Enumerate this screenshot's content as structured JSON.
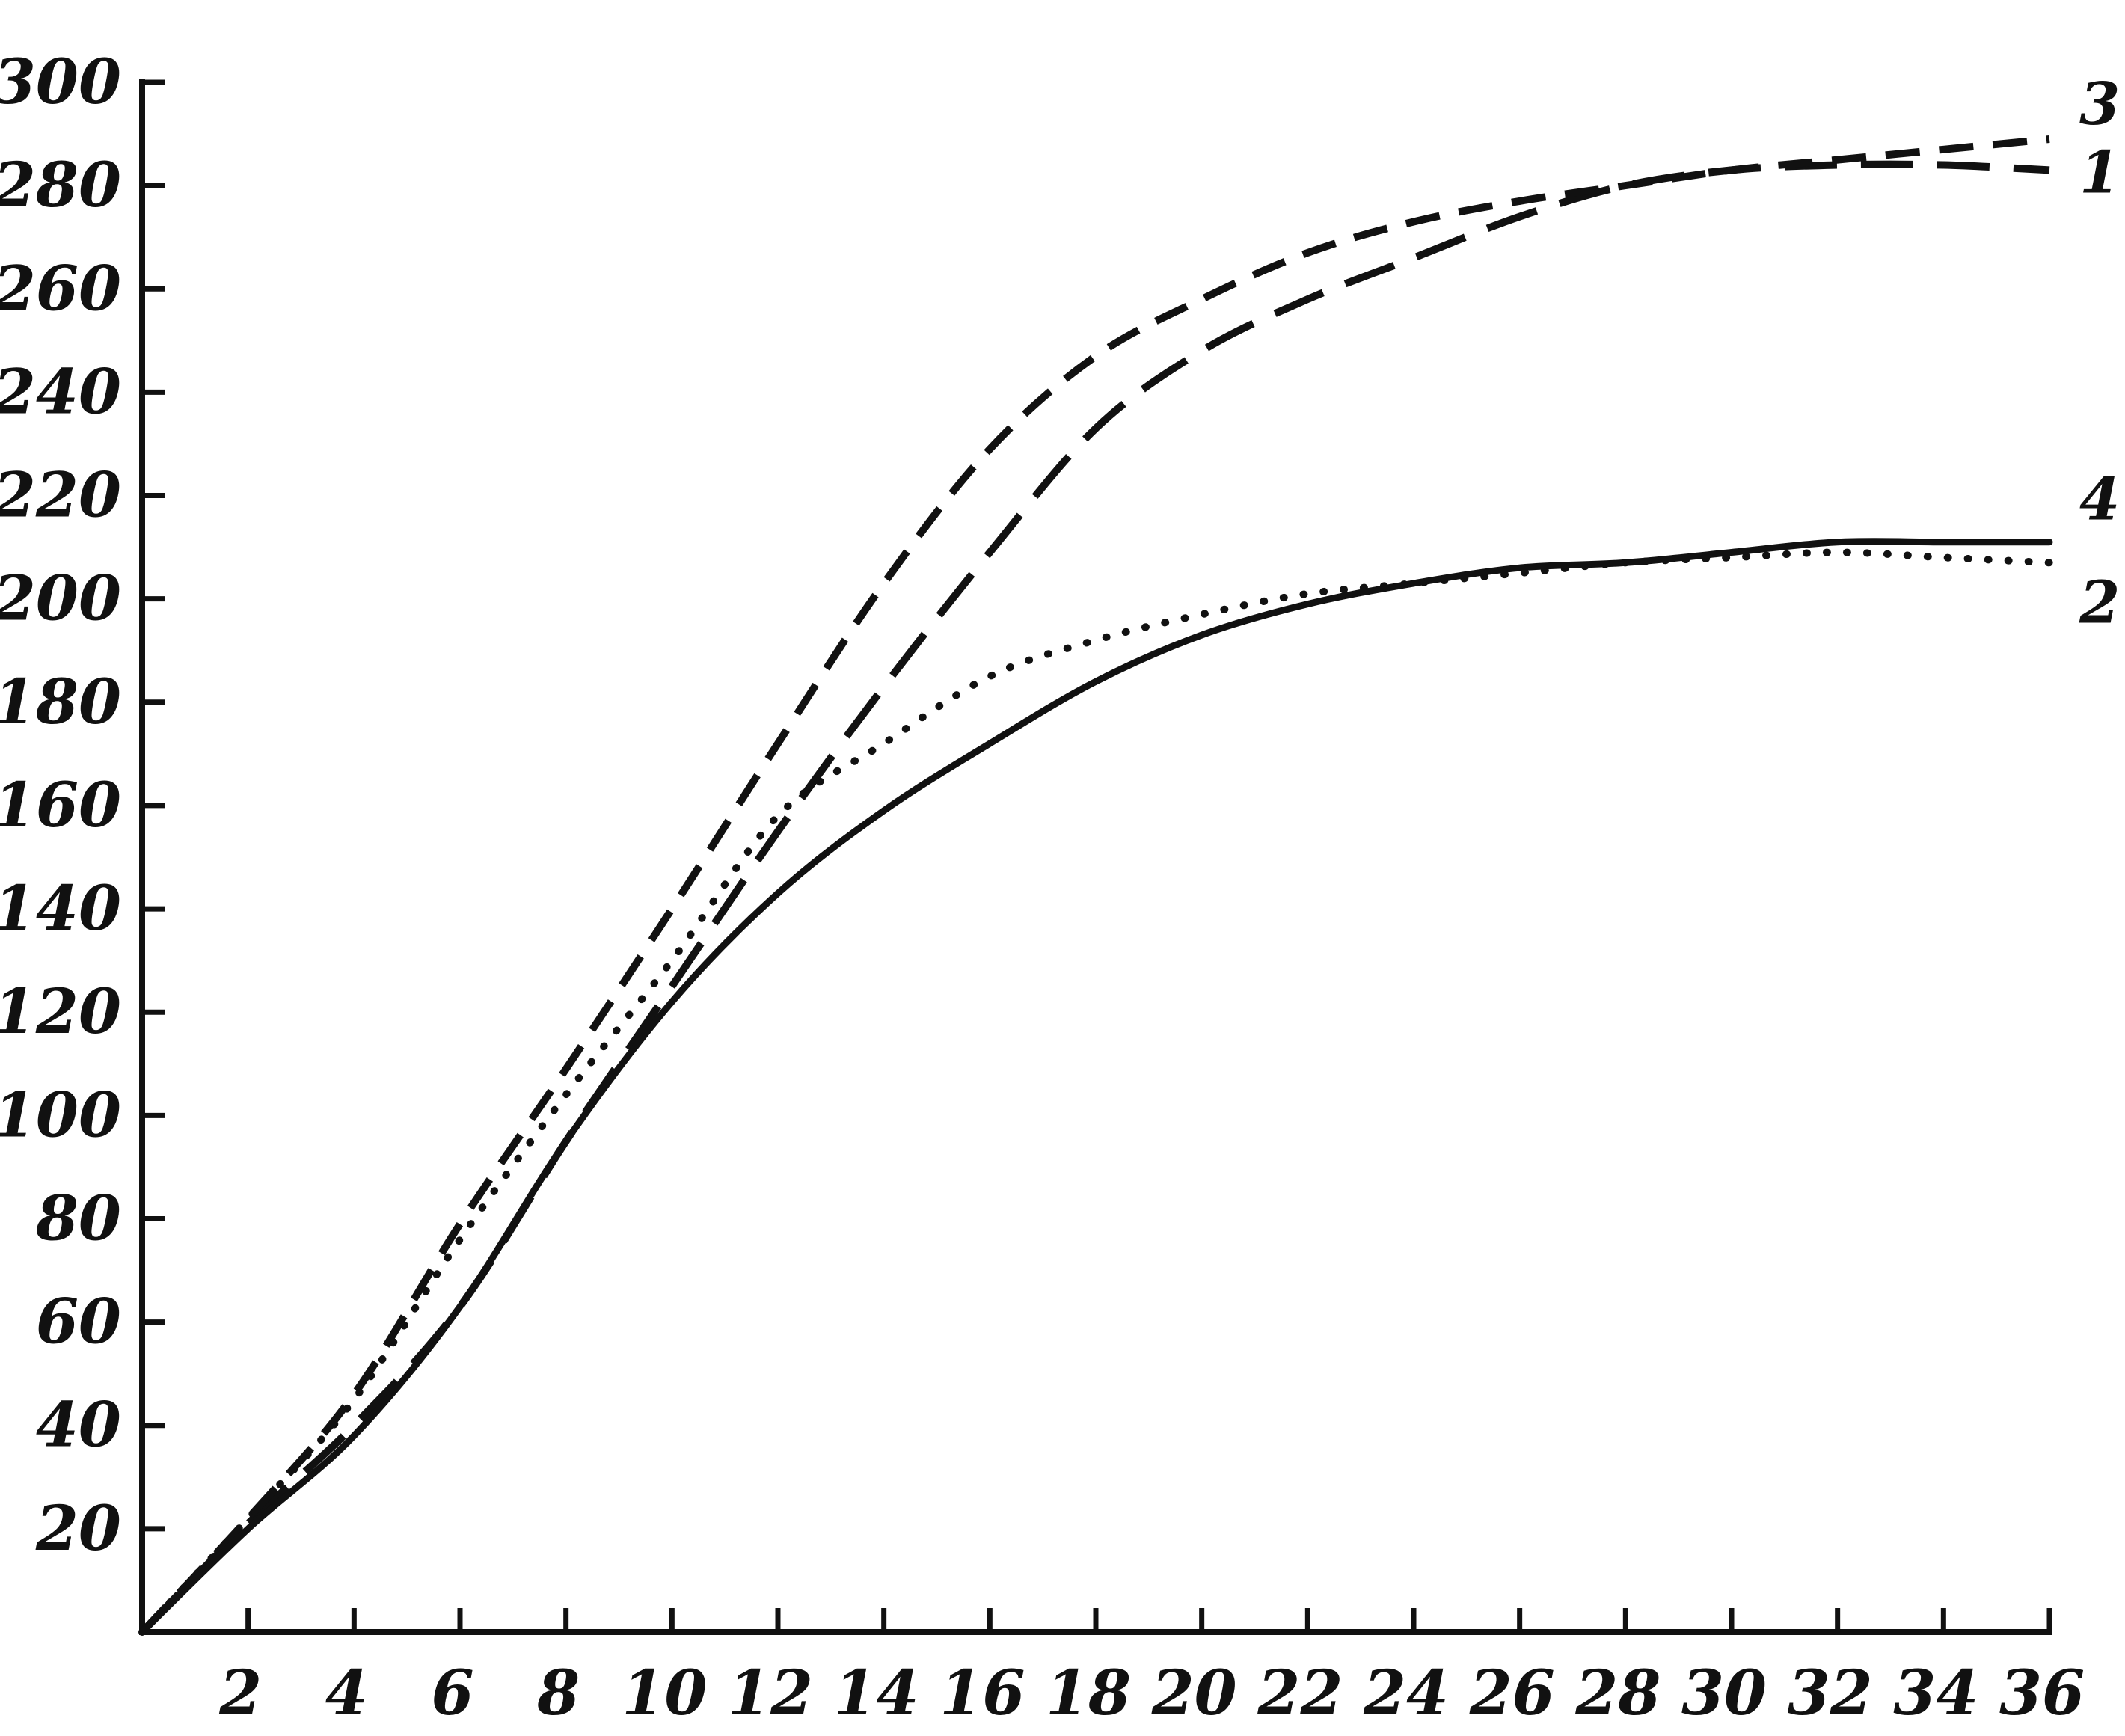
{
  "chart_data": {
    "type": "line",
    "title": "",
    "xlabel": "",
    "ylabel": "",
    "xlim": [
      0,
      36
    ],
    "ylim": [
      0,
      300
    ],
    "grid": false,
    "x_ticks": [
      2,
      4,
      6,
      8,
      10,
      12,
      14,
      16,
      18,
      20,
      22,
      24,
      26,
      28,
      30,
      32,
      34,
      36
    ],
    "y_ticks": [
      20,
      40,
      60,
      80,
      100,
      120,
      140,
      160,
      180,
      200,
      220,
      240,
      260,
      280,
      300
    ],
    "x_tick_labels": [
      "2",
      "4",
      "6",
      "8",
      "10",
      "12",
      "14",
      "16",
      "18",
      "20",
      "22",
      "24",
      "26",
      "28",
      "30",
      "32",
      "34",
      "36"
    ],
    "y_tick_labels": [
      "20",
      "40",
      "60",
      "80",
      "100",
      "120",
      "140",
      "160",
      "180",
      "200",
      "220",
      "240",
      "260",
      "280",
      "300"
    ],
    "series": [
      {
        "name": "1",
        "style": "long-dash",
        "color": "#111111",
        "x": [
          0,
          2,
          4,
          6,
          8,
          10,
          12,
          14,
          16,
          18,
          20,
          22,
          24,
          26,
          28,
          30,
          32,
          34,
          36
        ],
        "y": [
          0,
          21,
          40,
          63,
          95,
          125,
          155,
          183,
          209,
          233,
          248,
          258,
          266,
          274,
          280,
          283,
          284,
          284,
          283
        ]
      },
      {
        "name": "2",
        "style": "dotted",
        "color": "#111111",
        "x": [
          0,
          2,
          4,
          6,
          8,
          10,
          12,
          14,
          16,
          18,
          20,
          22,
          24,
          26,
          28,
          30,
          32,
          34,
          36
        ],
        "y": [
          0,
          22,
          45,
          76,
          104,
          130,
          158,
          172,
          185,
          192,
          197,
          201,
          203,
          205,
          207,
          208,
          209,
          208,
          207
        ]
      },
      {
        "name": "3",
        "style": "short-dash",
        "color": "#111111",
        "x": [
          0,
          2,
          4,
          6,
          8,
          10,
          12,
          14,
          16,
          18,
          20,
          22,
          24,
          26,
          28,
          30,
          32,
          34,
          36
        ],
        "y": [
          0,
          22,
          46,
          79,
          109,
          140,
          172,
          203,
          229,
          247,
          258,
          267,
          273,
          277,
          280,
          283,
          285,
          287,
          289
        ]
      },
      {
        "name": "4",
        "style": "solid",
        "color": "#111111",
        "x": [
          0,
          2,
          4,
          6,
          8,
          10,
          12,
          14,
          16,
          18,
          20,
          22,
          24,
          26,
          28,
          30,
          32,
          34,
          36
        ],
        "y": [
          0,
          20,
          38,
          63,
          95,
          122,
          143,
          159,
          172,
          184,
          193,
          199,
          203,
          206,
          207,
          209,
          211,
          211,
          211
        ]
      }
    ]
  }
}
